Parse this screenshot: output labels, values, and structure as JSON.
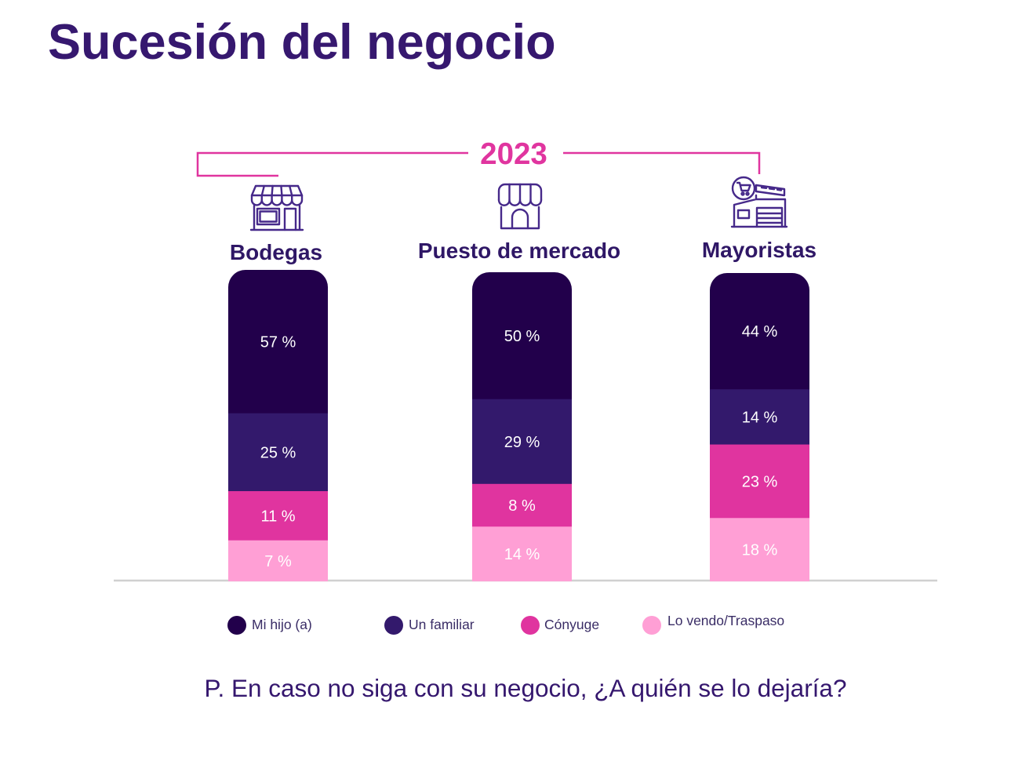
{
  "title": "Sucesión del negocio",
  "period_label": "2023",
  "question": "P. En caso no siga con su negocio, ¿A quién se lo dejaría?",
  "colors": {
    "title": "#36186f",
    "accent": "#e0359f",
    "icon_stroke": "#46298a",
    "value_label": "#ffffff",
    "baseline": "#d0d0d0"
  },
  "chart_data": {
    "type": "bar",
    "stacked": true,
    "categories": [
      "Bodegas",
      "Puesto de mercado",
      "Mayoristas"
    ],
    "category_icons": [
      "storefront-icon",
      "market-stall-icon",
      "wholesale-store-icon"
    ],
    "value_suffix": " %",
    "series": [
      {
        "name": "Mi hijo (a)",
        "color": "#22004b",
        "values": [
          57,
          50,
          44
        ]
      },
      {
        "name": "Un familiar",
        "color": "#33196c",
        "values": [
          25,
          29,
          14
        ]
      },
      {
        "name": "Cónyuge",
        "color": "#e0349f",
        "values": [
          11,
          8,
          23
        ]
      },
      {
        "name": "Lo vendo/Traspaso",
        "color": "#ff9fd5",
        "values": [
          7,
          14,
          18
        ]
      }
    ],
    "legend_position": "bottom",
    "grid": false
  }
}
